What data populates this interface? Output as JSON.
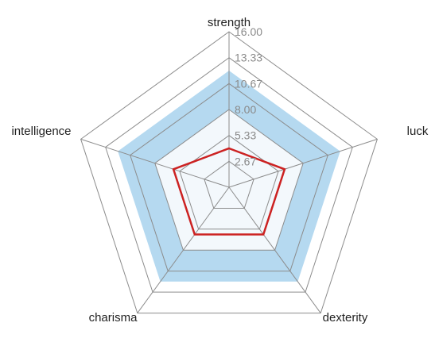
{
  "chart_data": {
    "type": "radar",
    "axes": [
      "strength",
      "luck",
      "dexterity",
      "charisma",
      "intelligence"
    ],
    "rlim": [
      0,
      16
    ],
    "ticks": [
      "2.67",
      "5.33",
      "8.00",
      "10.67",
      "13.33",
      "16.00"
    ],
    "tick_values": [
      2.67,
      5.33,
      8.0,
      10.67,
      13.33,
      16.0
    ],
    "band": {
      "low": 8.0,
      "high": 12.0,
      "color": "#b5d9f0",
      "inner_fill": "#f3f8fc"
    },
    "series": [
      {
        "values": [
          4.0,
          6.0,
          6.0,
          6.0,
          6.0
        ],
        "color": "#cc2222"
      }
    ],
    "grid": true
  }
}
